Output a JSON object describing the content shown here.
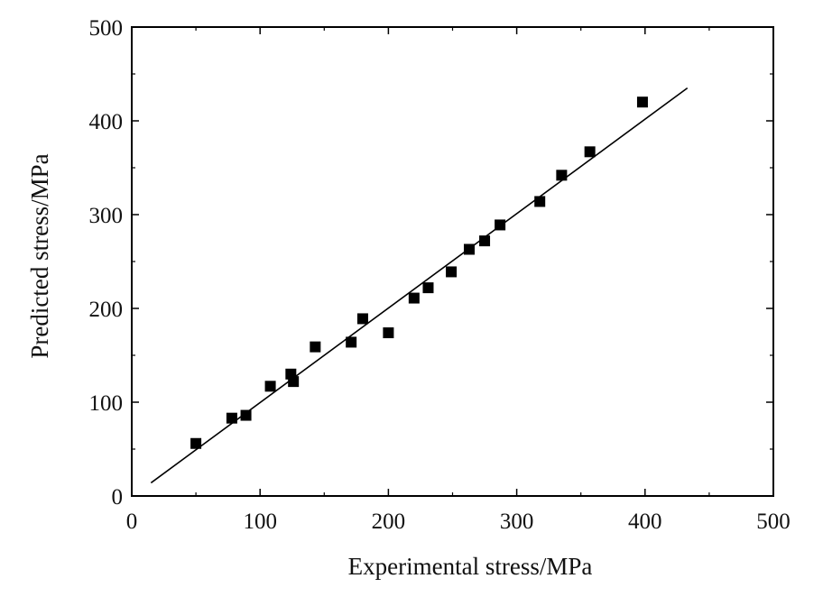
{
  "chart_data": {
    "type": "scatter",
    "title": "",
    "xlabel": "Experimental stress/MPa",
    "ylabel": "Predicted stress/MPa",
    "xlim": [
      0,
      500
    ],
    "ylim": [
      0,
      500
    ],
    "xticks": [
      "0",
      "100",
      "200",
      "300",
      "400",
      "500"
    ],
    "yticks": [
      "0",
      "100",
      "200",
      "300",
      "400",
      "500"
    ],
    "grid": false,
    "legend": "none",
    "marker": "square",
    "marker_color": "#000000",
    "line_color": "#000000",
    "points": [
      {
        "x": 50,
        "y": 56
      },
      {
        "x": 78,
        "y": 83
      },
      {
        "x": 89,
        "y": 86
      },
      {
        "x": 108,
        "y": 117
      },
      {
        "x": 124,
        "y": 130
      },
      {
        "x": 126,
        "y": 122
      },
      {
        "x": 143,
        "y": 159
      },
      {
        "x": 171,
        "y": 164
      },
      {
        "x": 180,
        "y": 189
      },
      {
        "x": 200,
        "y": 174
      },
      {
        "x": 220,
        "y": 211
      },
      {
        "x": 231,
        "y": 222
      },
      {
        "x": 249,
        "y": 239
      },
      {
        "x": 263,
        "y": 263
      },
      {
        "x": 275,
        "y": 272
      },
      {
        "x": 287,
        "y": 289
      },
      {
        "x": 318,
        "y": 314
      },
      {
        "x": 335,
        "y": 342
      },
      {
        "x": 357,
        "y": 367
      },
      {
        "x": 398,
        "y": 420
      }
    ],
    "fit_line": {
      "x": [
        15,
        433
      ],
      "y": [
        14,
        435
      ]
    }
  }
}
